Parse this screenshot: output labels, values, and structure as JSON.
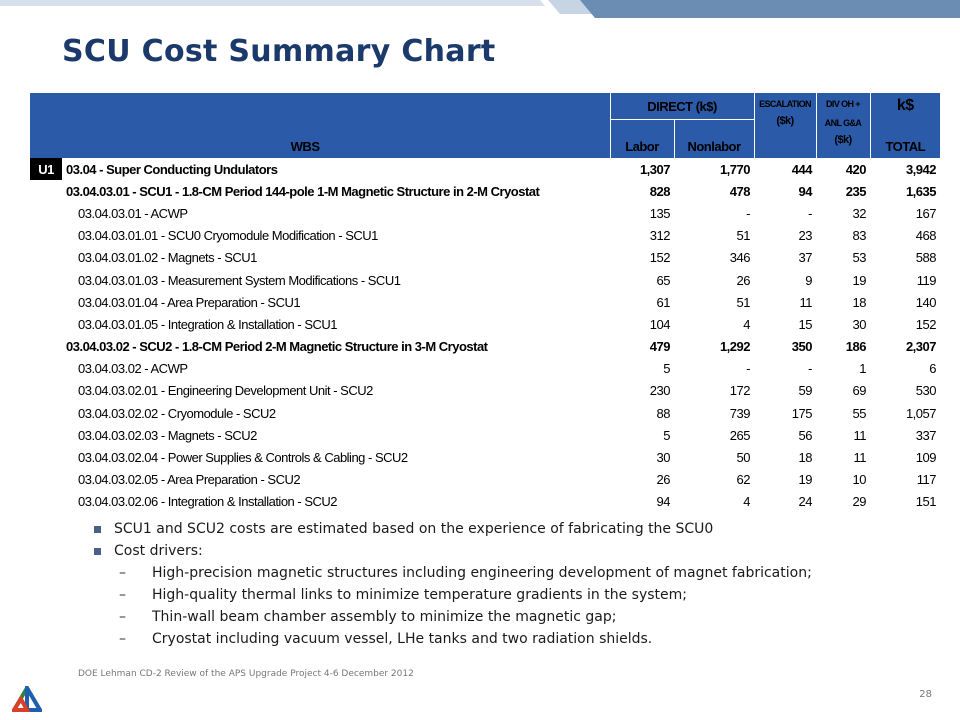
{
  "slide": {
    "title": "SCU Cost Summary Chart",
    "footer": "DOE Lehman CD-2 Review of the APS Upgrade Project   4-6 December  2012",
    "page_number": "28"
  },
  "table": {
    "headers": {
      "wbs": "WBS",
      "direct": "DIRECT (k$)",
      "labor": "Labor",
      "nonlabor": "Nonlabor",
      "escalation_1": "ESCALATION",
      "escalation_2": "($k)",
      "divoh_1": "DIV OH +",
      "divoh_2": "ANL G&A",
      "divoh_3": "($k)",
      "ks": "k$",
      "total": "TOTAL"
    },
    "rows": [
      {
        "tag": "U1",
        "label": "03.04 - Super Conducting Undulators",
        "labor": "1,307",
        "nonlabor": "1,770",
        "esc": "444",
        "divoh": "420",
        "total": "3,942"
      },
      {
        "tag": "",
        "label": "03.04.03.01 - SCU1 - 1.8-CM Period 144-pole 1-M Magnetic Structure in 2-M Cryostat",
        "labor": "828",
        "nonlabor": "478",
        "esc": "94",
        "divoh": "235",
        "total": "1,635"
      },
      {
        "tag": "",
        "label": "03.04.03.01 - ACWP",
        "labor": "135",
        "nonlabor": "-",
        "esc": "-",
        "divoh": "32",
        "total": "167"
      },
      {
        "tag": "",
        "label": "03.04.03.01.01 - SCU0 Cryomodule Modification - SCU1",
        "labor": "312",
        "nonlabor": "51",
        "esc": "23",
        "divoh": "83",
        "total": "468"
      },
      {
        "tag": "",
        "label": "03.04.03.01.02 - Magnets - SCU1",
        "labor": "152",
        "nonlabor": "346",
        "esc": "37",
        "divoh": "53",
        "total": "588"
      },
      {
        "tag": "",
        "label": "03.04.03.01.03 - Measurement System Modifications - SCU1",
        "labor": "65",
        "nonlabor": "26",
        "esc": "9",
        "divoh": "19",
        "total": "119"
      },
      {
        "tag": "",
        "label": "03.04.03.01.04 - Area Preparation - SCU1",
        "labor": "61",
        "nonlabor": "51",
        "esc": "11",
        "divoh": "18",
        "total": "140"
      },
      {
        "tag": "",
        "label": "03.04.03.01.05 - Integration & Installation - SCU1",
        "labor": "104",
        "nonlabor": "4",
        "esc": "15",
        "divoh": "30",
        "total": "152"
      },
      {
        "tag": "",
        "label": "03.04.03.02 - SCU2 - 1.8-CM Period 2-M Magnetic Structure in 3-M Cryostat",
        "labor": "479",
        "nonlabor": "1,292",
        "esc": "350",
        "divoh": "186",
        "total": "2,307"
      },
      {
        "tag": "",
        "label": "03.04.03.02 - ACWP",
        "labor": "5",
        "nonlabor": "-",
        "esc": "-",
        "divoh": "1",
        "total": "6"
      },
      {
        "tag": "",
        "label": "03.04.03.02.01 - Engineering Development Unit - SCU2",
        "labor": "230",
        "nonlabor": "172",
        "esc": "59",
        "divoh": "69",
        "total": "530"
      },
      {
        "tag": "",
        "label": "03.04.03.02.02 - Cryomodule - SCU2",
        "labor": "88",
        "nonlabor": "739",
        "esc": "175",
        "divoh": "55",
        "total": "1,057"
      },
      {
        "tag": "",
        "label": "03.04.03.02.03 - Magnets - SCU2",
        "labor": "5",
        "nonlabor": "265",
        "esc": "56",
        "divoh": "11",
        "total": "337"
      },
      {
        "tag": "",
        "label": "03.04.03.02.04 - Power Supplies & Controls & Cabling - SCU2",
        "labor": "30",
        "nonlabor": "50",
        "esc": "18",
        "divoh": "11",
        "total": "109"
      },
      {
        "tag": "",
        "label": "03.04.03.02.05 - Area Preparation - SCU2",
        "labor": "26",
        "nonlabor": "62",
        "esc": "19",
        "divoh": "10",
        "total": "117"
      },
      {
        "tag": "",
        "label": "03.04.03.02.06 - Integration & Installation - SCU2",
        "labor": "94",
        "nonlabor": "4",
        "esc": "24",
        "divoh": "29",
        "total": "151"
      }
    ]
  },
  "bullets": [
    {
      "text": "SCU1 and SCU2 costs are estimated based on the experience of fabricating the SCU0"
    },
    {
      "text": "Cost drivers:"
    }
  ],
  "sub_bullets": [
    "High-precision magnetic structures including engineering development of magnet fabrication;",
    "High-quality thermal links to minimize temperature gradients in the system;",
    "Thin-wall beam chamber assembly to minimize the magnetic gap;",
    "Cryostat including vacuum vessel, LHe tanks  and two radiation shields."
  ],
  "sub_bullet_marker": "–",
  "colors": {
    "title": "#1b3a6b",
    "header_blue": "#2b5ba8",
    "strip_light": "#b9c9dd",
    "strip_dark": "#5a7fa8"
  }
}
